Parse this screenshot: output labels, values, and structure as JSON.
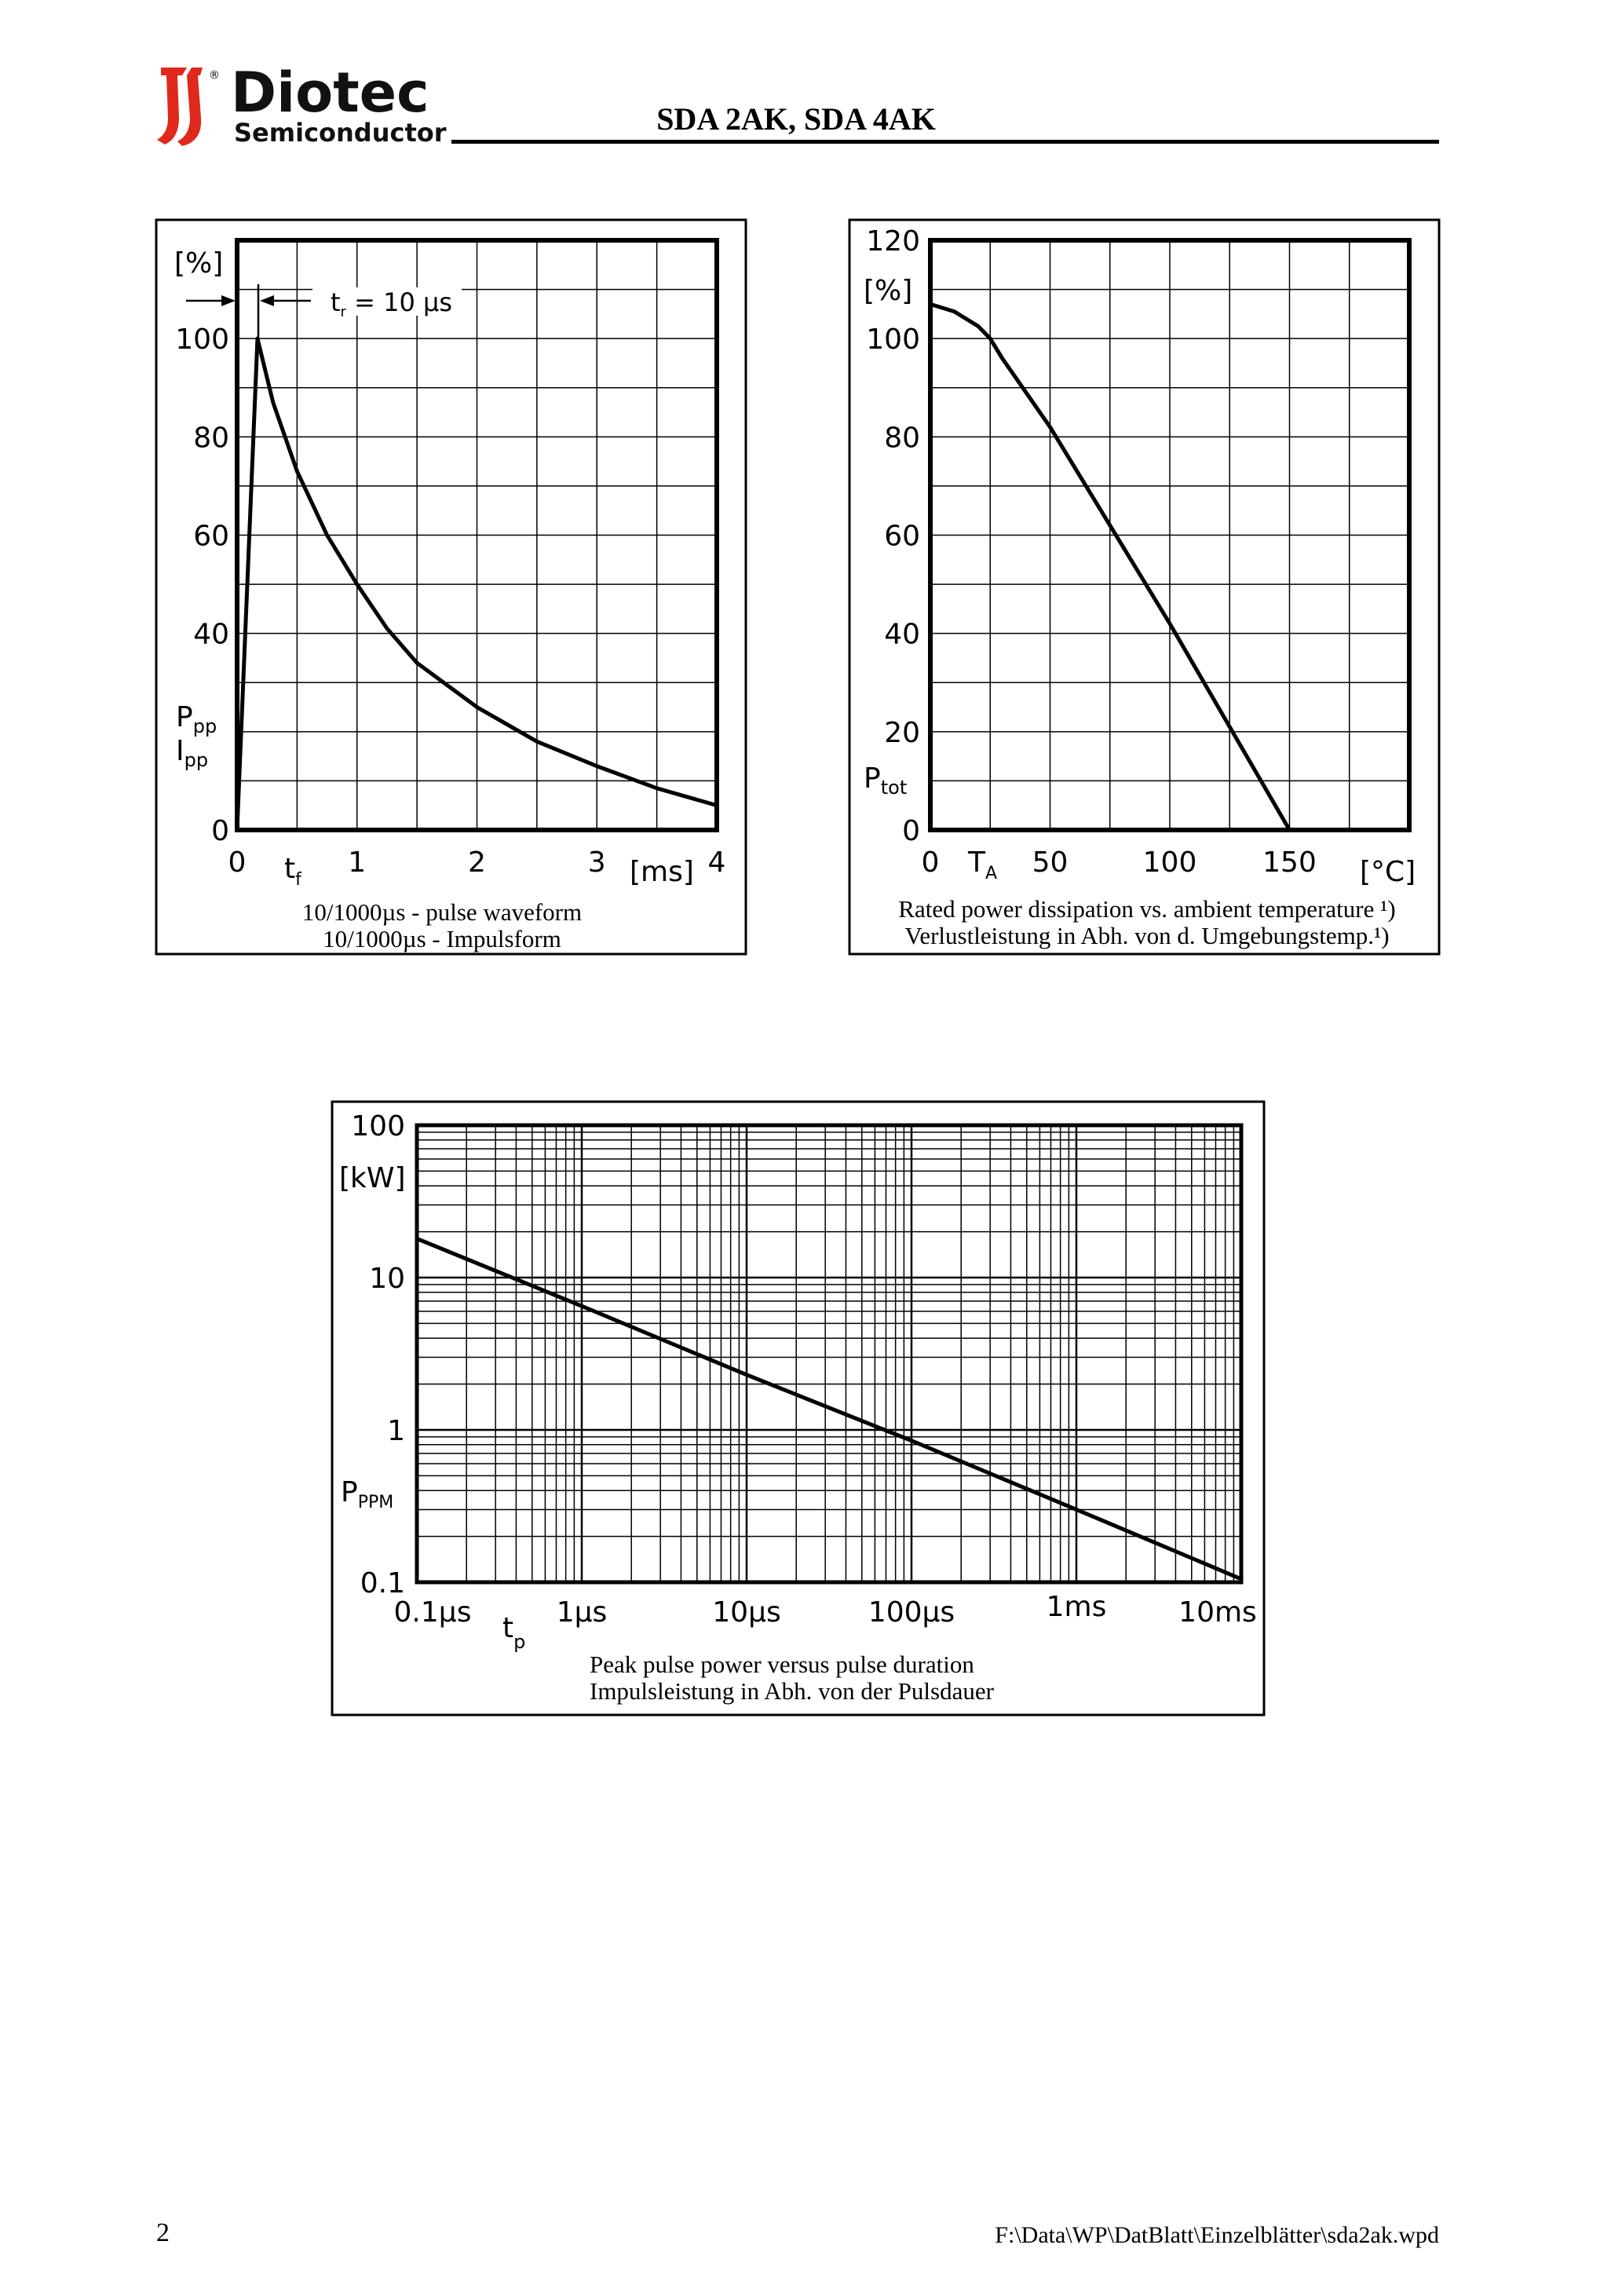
{
  "header": {
    "brand": "Diotec",
    "brand_sub": "Semiconductor",
    "registered": "®",
    "title": "SDA 2AK, SDA 4AK",
    "logo_color": "#e0281c"
  },
  "footer": {
    "page_number": "2",
    "file_path": "F:\\Data\\WP\\DatBlatt\\Einzelblätter\\sda2ak.wpd"
  },
  "chart_data": [
    {
      "type": "line",
      "caption": [
        "10/1000µs - pulse waveform",
        "10/1000µs - Impulsform"
      ],
      "y_unit": "[%]",
      "y_symbols": [
        {
          "main": "P",
          "sub": "pp"
        },
        {
          "main": "I",
          "sub": "pp"
        }
      ],
      "x_symbol": {
        "main": "t",
        "sub": "f"
      },
      "x_unit": "[ms]",
      "annotation": {
        "main": "t",
        "sub": "r",
        "rest": " = 10 µs"
      },
      "xlim": [
        0,
        4
      ],
      "ylim": [
        0,
        120
      ],
      "x_ticks": [
        "0",
        "1",
        "2",
        "3",
        "4"
      ],
      "y_ticks": [
        "0",
        "40",
        "60",
        "80",
        "100"
      ],
      "grid": true,
      "x": [
        0,
        0.17,
        0.3,
        0.5,
        0.75,
        1.0,
        1.25,
        1.5,
        2.0,
        2.5,
        3.0,
        3.5,
        4.0
      ],
      "y": [
        0,
        100,
        87,
        73,
        60,
        50,
        41,
        34,
        25,
        18,
        13,
        8.5,
        5
      ]
    },
    {
      "type": "line",
      "caption": [
        "Rated power dissipation vs. ambient temperature ¹)",
        "Verlustleistung in Abh. von d. Umgebungstemp.¹)"
      ],
      "y_unit": "[%]",
      "y_symbols": [
        {
          "main": "P",
          "sub": "tot"
        }
      ],
      "x_symbol": {
        "main": "T",
        "sub": "A"
      },
      "x_unit": "[°C]",
      "xlim": [
        0,
        200
      ],
      "ylim": [
        0,
        120
      ],
      "x_ticks": [
        "0",
        "50",
        "100",
        "150"
      ],
      "y_ticks": [
        "0",
        "20",
        "40",
        "60",
        "80",
        "100",
        "120"
      ],
      "grid": true,
      "x": [
        0,
        10,
        20,
        25,
        30,
        50,
        75,
        100,
        125,
        150
      ],
      "y": [
        107,
        105.5,
        102.5,
        100,
        96,
        82,
        62,
        42,
        21,
        0
      ]
    },
    {
      "type": "line",
      "scale": "log-log",
      "caption": [
        "Peak pulse power versus pulse duration",
        "Impulsleistung in Abh. von der Pulsdauer"
      ],
      "y_unit": "[kW]",
      "y_symbols": [
        {
          "main": "P",
          "sub": "PPM"
        }
      ],
      "x_symbol": {
        "main": "t",
        "sub": "p"
      },
      "xlim": [
        "0.1µs",
        "10ms"
      ],
      "ylim": [
        0.1,
        100
      ],
      "x_ticks": [
        "0.1µs",
        "1µs",
        "10µs",
        "100µs",
        "1ms",
        "10ms"
      ],
      "y_ticks": [
        "0.1",
        "1",
        "10",
        "100"
      ],
      "grid": true,
      "x_seconds": [
        1e-07,
        1e-06,
        1e-05,
        0.0001,
        0.001,
        0.01
      ],
      "y": [
        18,
        6.5,
        2.3,
        0.85,
        0.3,
        0.105
      ]
    }
  ]
}
